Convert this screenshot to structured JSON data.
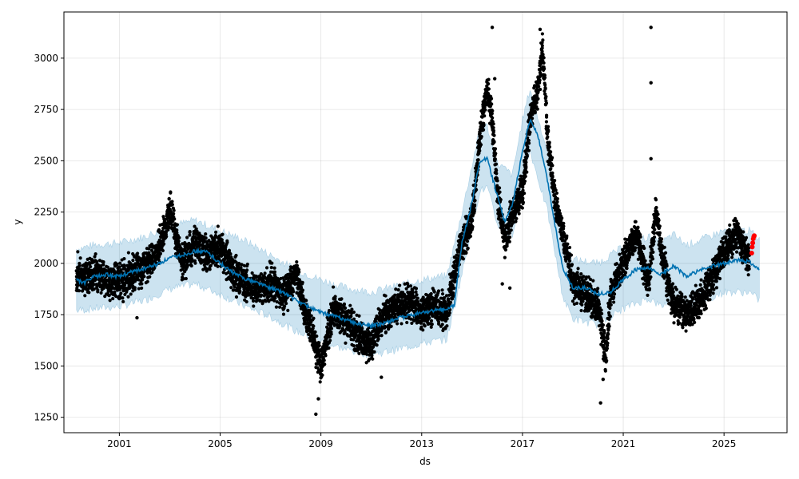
{
  "chart_data": {
    "type": "scatter",
    "xlabel": "ds",
    "ylabel": "y",
    "xlim": [
      1998.8,
      2027.5
    ],
    "ylim": [
      1175,
      3225
    ],
    "x_ticks": [
      2001,
      2005,
      2009,
      2013,
      2017,
      2021,
      2025
    ],
    "y_ticks": [
      1250,
      1500,
      1750,
      2000,
      2250,
      2500,
      2750,
      3000
    ],
    "grid": true,
    "colors": {
      "observed": "#000000",
      "recent": "#ff0000",
      "forecast_line": "#0072b2",
      "uncertainty_band": "#0072b2"
    },
    "series": [
      {
        "role": "forecast-line",
        "x": [
          1999.3,
          1999.6,
          2000.0,
          2000.5,
          2001.0,
          2001.5,
          2002.0,
          2002.5,
          2003.0,
          2003.5,
          2004.0,
          2004.5,
          2005.0,
          2005.5,
          2006.0,
          2006.5,
          2007.0,
          2007.5,
          2008.0,
          2008.5,
          2009.0,
          2009.5,
          2010.0,
          2010.5,
          2011.0,
          2011.5,
          2012.0,
          2012.5,
          2013.0,
          2013.5,
          2014.0,
          2014.3,
          2014.6,
          2015.0,
          2015.3,
          2015.6,
          2016.0,
          2016.3,
          2016.6,
          2017.0,
          2017.3,
          2017.6,
          2018.0,
          2018.3,
          2018.6,
          2019.0,
          2019.5,
          2020.0,
          2020.5,
          2021.0,
          2021.5,
          2022.0,
          2022.5,
          2023.0,
          2023.5,
          2024.0,
          2024.5,
          2025.0,
          2025.5,
          2026.0,
          2026.4
        ],
        "y": [
          1920,
          1905,
          1935,
          1945,
          1935,
          1960,
          1975,
          1995,
          2025,
          2040,
          2060,
          2055,
          2000,
          1955,
          1925,
          1905,
          1880,
          1860,
          1820,
          1790,
          1760,
          1745,
          1725,
          1705,
          1695,
          1710,
          1730,
          1745,
          1760,
          1770,
          1775,
          1800,
          2100,
          2300,
          2500,
          2510,
          2330,
          2200,
          2280,
          2550,
          2700,
          2630,
          2400,
          2180,
          1980,
          1880,
          1880,
          1850,
          1860,
          1920,
          1970,
          1975,
          1945,
          1990,
          1935,
          1965,
          1985,
          2000,
          2015,
          2010,
          1970
        ]
      },
      {
        "role": "uncertainty-band",
        "x": [
          1999.3,
          2000.0,
          2001.0,
          2002.0,
          2003.0,
          2004.0,
          2005.0,
          2006.0,
          2007.0,
          2008.0,
          2009.0,
          2010.0,
          2011.0,
          2012.0,
          2013.0,
          2014.0,
          2014.6,
          2015.3,
          2015.6,
          2016.0,
          2016.6,
          2017.0,
          2017.3,
          2018.0,
          2018.6,
          2019.0,
          2020.0,
          2021.0,
          2022.0,
          2022.5,
          2023.0,
          2023.5,
          2024.0,
          2025.0,
          2026.0,
          2026.4
        ],
        "y_lower": [
          1770,
          1780,
          1790,
          1820,
          1875,
          1900,
          1850,
          1790,
          1740,
          1670,
          1620,
          1580,
          1555,
          1580,
          1610,
          1630,
          1950,
          2350,
          2370,
          2190,
          2130,
          2390,
          2550,
          2250,
          1840,
          1730,
          1700,
          1780,
          1830,
          1790,
          1830,
          1790,
          1810,
          1860,
          1860,
          1820
        ],
        "y_upper": [
          2070,
          2090,
          2100,
          2130,
          2180,
          2210,
          2160,
          2110,
          2040,
          1970,
          1920,
          1880,
          1860,
          1890,
          1920,
          1940,
          2250,
          2650,
          2670,
          2490,
          2430,
          2700,
          2850,
          2540,
          2130,
          2020,
          2000,
          2080,
          2130,
          2100,
          2140,
          2090,
          2110,
          2160,
          2160,
          2120
        ]
      },
      {
        "role": "observed",
        "color": "#000000",
        "x": [
          1999.3,
          1999.6,
          2000.0,
          2000.5,
          2001.0,
          2001.5,
          2002.0,
          2002.5,
          2002.8,
          2003.0,
          2003.5,
          2004.0,
          2004.5,
          2005.0,
          2005.5,
          2006.0,
          2006.5,
          2007.0,
          2007.5,
          2008.0,
          2008.4,
          2008.8,
          2009.0,
          2009.5,
          2010.0,
          2010.5,
          2011.0,
          2011.5,
          2012.0,
          2012.5,
          2013.0,
          2013.5,
          2014.0,
          2014.3,
          2014.6,
          2015.0,
          2015.3,
          2015.6,
          2015.8,
          2016.0,
          2016.3,
          2016.6,
          2017.0,
          2017.3,
          2017.6,
          2017.8,
          2018.0,
          2018.3,
          2018.6,
          2019.0,
          2019.5,
          2020.0,
          2020.3,
          2020.5,
          2021.0,
          2021.5,
          2022.0,
          2022.3,
          2022.5,
          2023.0,
          2023.5,
          2024.0,
          2024.5,
          2025.0,
          2025.5,
          2026.0
        ],
        "y": [
          1950,
          1925,
          1960,
          1915,
          1920,
          1945,
          1985,
          2050,
          2150,
          2280,
          2000,
          2100,
          2040,
          2080,
          1960,
          1900,
          1870,
          1910,
          1850,
          1950,
          1750,
          1600,
          1500,
          1780,
          1720,
          1650,
          1600,
          1750,
          1780,
          1820,
          1760,
          1800,
          1750,
          1950,
          2100,
          2200,
          2600,
          2850,
          2700,
          2350,
          2100,
          2250,
          2350,
          2700,
          2850,
          3050,
          2600,
          2300,
          2150,
          1900,
          1850,
          1800,
          1550,
          1850,
          2000,
          2150,
          1900,
          2250,
          2050,
          1800,
          1750,
          1800,
          1920,
          2050,
          2150,
          2010
        ]
      },
      {
        "role": "observed-outliers",
        "color": "#000000",
        "x": [
          2001.7,
          2008.8,
          2008.9,
          2011.4,
          2015.8,
          2015.9,
          2016.2,
          2016.5,
          2017.7,
          2020.1,
          2020.2,
          2022.1,
          2022.1,
          2022.1
        ],
        "y": [
          1735,
          1265,
          1340,
          1445,
          3150,
          2900,
          1900,
          1880,
          3140,
          1320,
          1435,
          3150,
          2880,
          2510
        ]
      },
      {
        "role": "recent",
        "color": "#ff0000",
        "x": [
          2026.1,
          2026.12,
          2026.14,
          2026.16,
          2026.18,
          2026.2
        ],
        "y": [
          2050,
          2080,
          2100,
          2120,
          2130,
          2135
        ]
      }
    ]
  }
}
